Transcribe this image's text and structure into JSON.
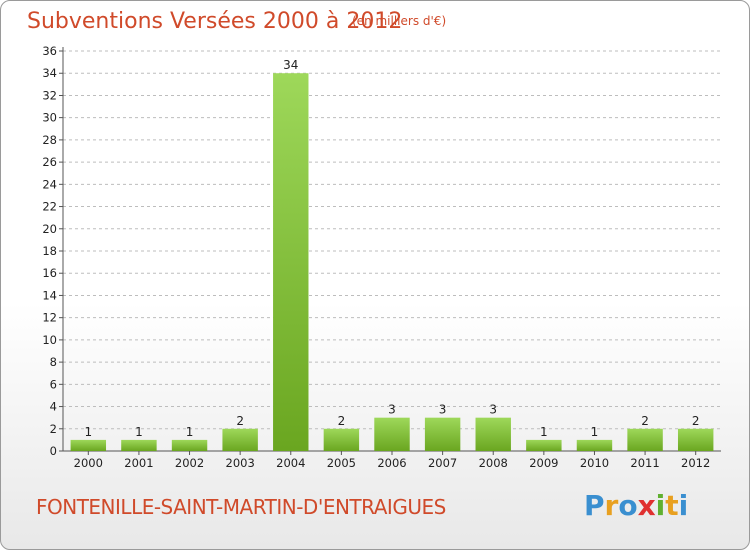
{
  "title": "Subventions Versées 2000 à 2012",
  "subtitle": "(en milliers d'€)",
  "location": "FONTENILLE-SAINT-MARTIN-D'ENTRAIGUES",
  "logo": {
    "text": "Proxiti",
    "letters": [
      {
        "ch": "P",
        "color": "#3a8fd0"
      },
      {
        "ch": "r",
        "color": "#e8a020"
      },
      {
        "ch": "o",
        "color": "#3a8fd0"
      },
      {
        "ch": "x",
        "color": "#e03030"
      },
      {
        "ch": "i",
        "color": "#60b030"
      },
      {
        "ch": "t",
        "color": "#e8a020"
      },
      {
        "ch": "i",
        "color": "#3a8fd0"
      }
    ]
  },
  "colors": {
    "title": "#d04a2a",
    "bar_top": "#9ed85a",
    "bar_bottom": "#6aa620",
    "grid": "#bdbdbd"
  },
  "chart_data": {
    "type": "bar",
    "categories": [
      "2000",
      "2001",
      "2002",
      "2003",
      "2004",
      "2005",
      "2006",
      "2007",
      "2008",
      "2009",
      "2010",
      "2011",
      "2012"
    ],
    "values": [
      1,
      1,
      1,
      2,
      34,
      2,
      3,
      3,
      3,
      1,
      1,
      2,
      2
    ],
    "yticks": [
      0,
      2,
      4,
      6,
      8,
      10,
      12,
      14,
      16,
      18,
      20,
      22,
      24,
      26,
      28,
      30,
      32,
      34,
      36
    ],
    "ylim": [
      0,
      36
    ],
    "grid": true,
    "data_labels": true
  }
}
